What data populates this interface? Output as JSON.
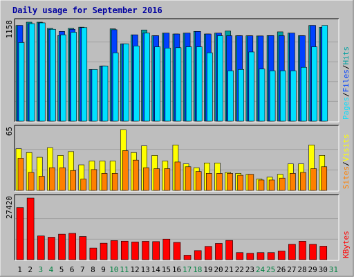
{
  "chart_data": {
    "type": "bar",
    "title": "Daily usage for September 2016",
    "colors": {
      "background": "#c0c0c0",
      "plot_background": "#bebebe",
      "title_text": "#0000a0",
      "hits": "#00a0a0",
      "files": "#0040ff",
      "pages": "#00e0ff",
      "visits": "#ffff00",
      "sites": "#ff8000",
      "kbytes": "#ff0000",
      "weekday_label": "#000000",
      "weekend_label": "#008040"
    },
    "x": [
      "1",
      "2",
      "3",
      "4",
      "5",
      "6",
      "7",
      "8",
      "9",
      "10",
      "11",
      "12",
      "13",
      "14",
      "15",
      "16",
      "17",
      "18",
      "19",
      "20",
      "21",
      "22",
      "23",
      "24",
      "25",
      "26",
      "27",
      "28",
      "29",
      "30",
      "31"
    ],
    "weekend_days": [
      "3",
      "4",
      "10",
      "11",
      "17",
      "18",
      "24",
      "25",
      "31"
    ],
    "panels": [
      {
        "id": "pages-files-hits",
        "ymax_label": "1158",
        "ymax": 1158,
        "legend": [
          {
            "text": "Pages",
            "color": "#00e0ff"
          },
          {
            "text": "/",
            "color": "#000000"
          },
          {
            "text": "Files",
            "color": "#0040ff"
          },
          {
            "text": "/",
            "color": "#000000"
          },
          {
            "text": "Hits",
            "color": "#00a0a0"
          }
        ],
        "series": [
          {
            "name": "Hits",
            "values": [
              1120,
              1158,
              1158,
              1085,
              1002,
              1085,
              1100,
              605,
              646,
              1080,
              905,
              1010,
              1067,
              1000,
              1030,
              1020,
              1030,
              1050,
              1020,
              1030,
              1054,
              1000,
              999,
              997,
              1001,
              1045,
              1030,
              1000,
              1120,
              1098,
              0
            ]
          },
          {
            "name": "Files",
            "values": [
              1120,
              1140,
              1150,
              1075,
              1050,
              1075,
              1095,
              604,
              646,
              1070,
              905,
              1010,
              1030,
              1000,
              1030,
              1020,
              1030,
              1050,
              1020,
              1030,
              1000,
              1000,
              999,
              997,
              1001,
              1000,
              1030,
              1000,
              1120,
              1098,
              0
            ]
          },
          {
            "name": "Pages",
            "values": [
              920,
              1140,
              1150,
              1075,
              1010,
              1040,
              1095,
              605,
              646,
              800,
              905,
              880,
              1030,
              870,
              855,
              860,
              870,
              870,
              800,
              1000,
              590,
              605,
              810,
              610,
              590,
              590,
              590,
              630,
              870,
              1120,
              0
            ]
          }
        ]
      },
      {
        "id": "visits-sites",
        "ymax_label": "65",
        "ymax": 65,
        "legend": [
          {
            "text": "Sites",
            "color": "#ff8000"
          },
          {
            "text": "/",
            "color": "#000000"
          },
          {
            "text": "Visits",
            "color": "#ffff00"
          }
        ],
        "series": [
          {
            "name": "Visits",
            "values": [
              44,
              40,
              35,
              45,
              37,
              41,
              27,
              31,
              31,
              31,
              64,
              40,
              47,
              37,
              31,
              48,
              28,
              24,
              29,
              29,
              19,
              18,
              17,
              12,
              14,
              17,
              28,
              28,
              48,
              37,
              0
            ]
          },
          {
            "name": "Sites",
            "values": [
              34,
              19,
              15,
              24,
              24,
              21,
              12,
              22,
              18,
              18,
              42,
              32,
              24,
              23,
              23,
              30,
              25,
              20,
              18,
              18,
              18,
              16,
              17,
              11,
              11,
              13,
              18,
              19,
              23,
              25,
              0
            ]
          }
        ]
      },
      {
        "id": "kbytes",
        "ymax_label": "27420",
        "ymax": 27420,
        "legend": [
          {
            "text": "KBytes",
            "color": "#ff0000"
          }
        ],
        "series": [
          {
            "name": "KBytes",
            "values": [
              23200,
              27420,
              10560,
              10000,
              11360,
              11720,
              10320,
              5200,
              7350,
              8500,
              8250,
              7880,
              8170,
              8060,
              9170,
              7700,
              2010,
              4050,
              5930,
              7250,
              8580,
              3160,
              2880,
              3160,
              3160,
              3860,
              6880,
              8200,
              6880,
              6020,
              0
            ]
          }
        ]
      }
    ]
  }
}
